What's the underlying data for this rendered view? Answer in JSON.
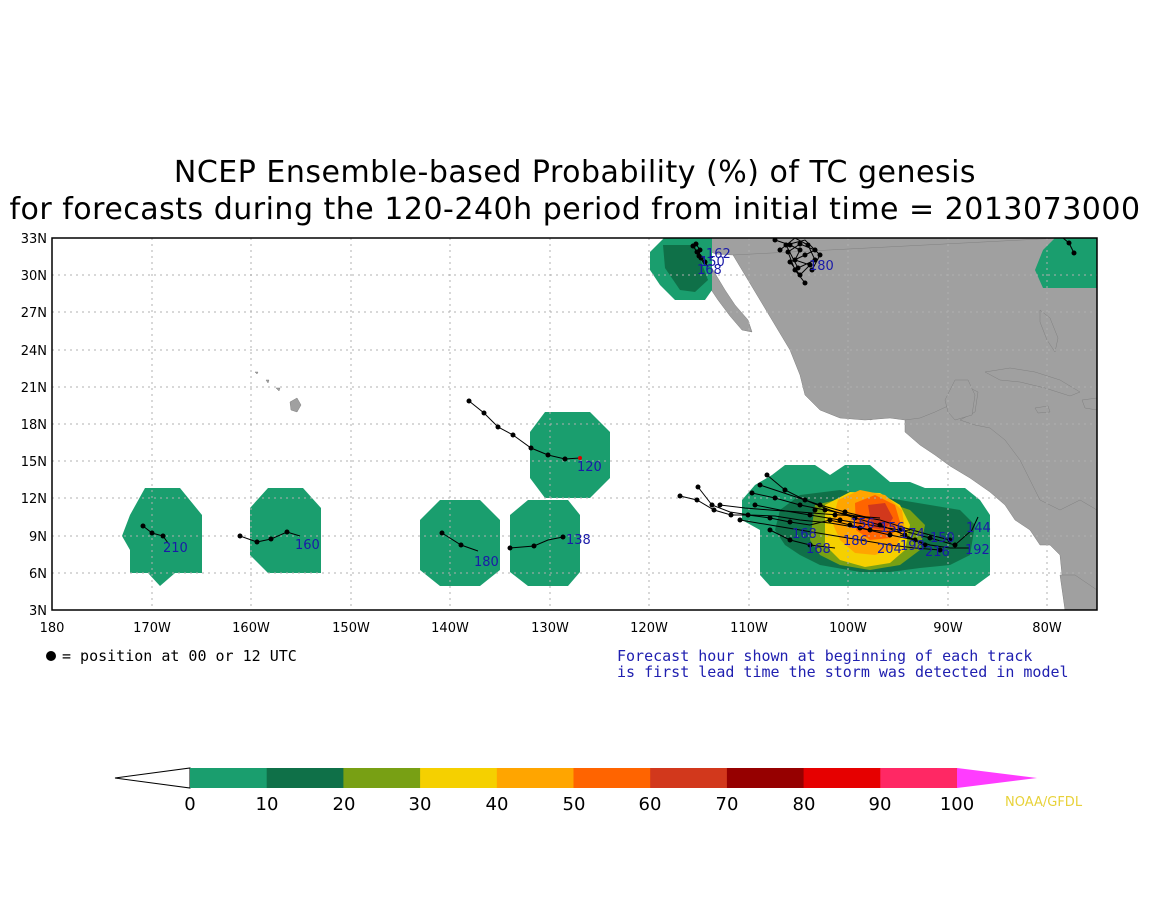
{
  "title_line1": "NCEP Ensemble-based Probability (%) of TC genesis",
  "title_line2": "for forecasts during the 120-240h period from initial time = 2013073000",
  "lat_labels": [
    "33N",
    "30N",
    "27N",
    "24N",
    "21N",
    "18N",
    "15N",
    "12N",
    "9N",
    "6N",
    "3N"
  ],
  "lon_labels": [
    "180",
    "170W",
    "160W",
    "150W",
    "140W",
    "130W",
    "120W",
    "110W",
    "100W",
    "90W",
    "80W"
  ],
  "marker_note": "= position at 00 or 12 UTC",
  "forecast_note_line1": "Forecast hour shown at beginning of each track",
  "forecast_note_line2": "is first lead time the storm was detected in model",
  "colorbar": {
    "labels": [
      "0",
      "10",
      "20",
      "30",
      "40",
      "50",
      "60",
      "70",
      "80",
      "90",
      "100"
    ],
    "colors": [
      "#1a9e6e",
      "#0f7048",
      "#78a014",
      "#f5d000",
      "#ffa500",
      "#ff6400",
      "#d2381c",
      "#960000",
      "#e60000",
      "#ff2864",
      "#ff3cff"
    ]
  },
  "credit": "NOAA/GFDL",
  "track_labels": [
    "162",
    "150",
    "168",
    "180",
    "120",
    "138",
    "180",
    "160",
    "210",
    "144",
    "192",
    "216",
    "150",
    "204",
    "168",
    "186",
    "156",
    "198",
    "174",
    "168",
    "156"
  ],
  "colors": {
    "land": "#a0a0a0",
    "ocean": "#ffffff",
    "track_label": "#1a1aa8"
  }
}
